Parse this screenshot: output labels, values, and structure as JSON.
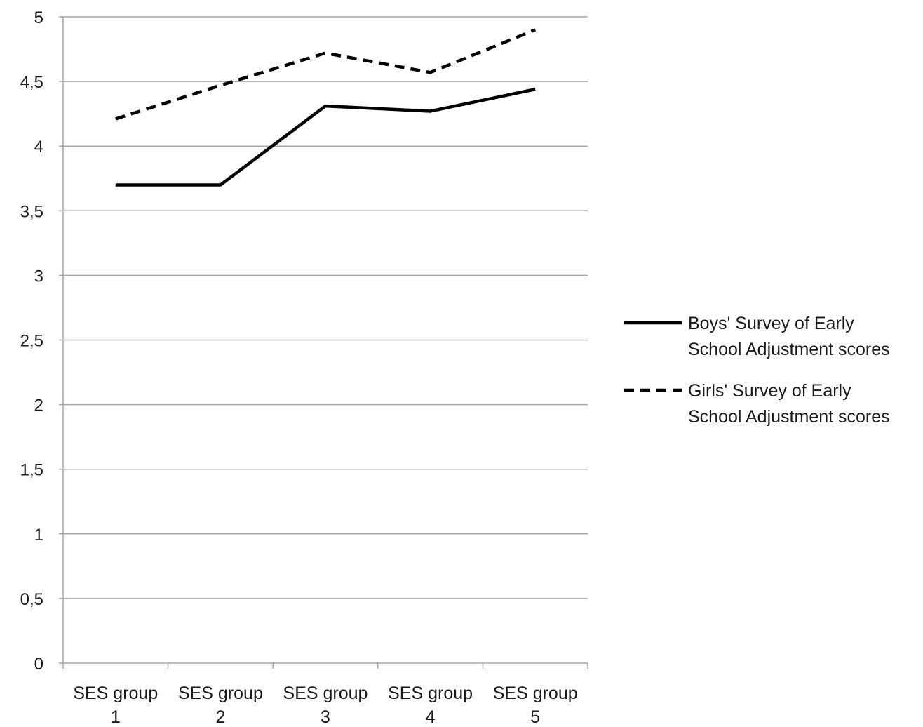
{
  "chart_data": {
    "type": "line",
    "title": "",
    "xlabel": "",
    "ylabel": "",
    "categories": [
      [
        "SES group",
        "1"
      ],
      [
        "SES group",
        "2"
      ],
      [
        "SES group",
        "3"
      ],
      [
        "SES group",
        "4"
      ],
      [
        "SES group",
        "5"
      ]
    ],
    "ylim": [
      0,
      5
    ],
    "yticks": [
      {
        "value": 0,
        "label": "0"
      },
      {
        "value": 0.5,
        "label": "0,5"
      },
      {
        "value": 1,
        "label": "1"
      },
      {
        "value": 1.5,
        "label": "1,5"
      },
      {
        "value": 2,
        "label": "2"
      },
      {
        "value": 2.5,
        "label": "2,5"
      },
      {
        "value": 3,
        "label": "3"
      },
      {
        "value": 3.5,
        "label": "3,5"
      },
      {
        "value": 4,
        "label": "4"
      },
      {
        "value": 4.5,
        "label": "4,5"
      },
      {
        "value": 5,
        "label": "5"
      }
    ],
    "grid": true,
    "legend_position": "right",
    "series": [
      {
        "name": [
          "Boys' Survey of Early",
          "School Adjustment scores"
        ],
        "values": [
          3.7,
          3.7,
          4.31,
          4.27,
          4.44
        ],
        "line_style": "solid",
        "color": "#000000"
      },
      {
        "name": [
          "Girls' Survey of Early",
          "School Adjustment scores"
        ],
        "values": [
          4.21,
          4.47,
          4.72,
          4.57,
          4.9
        ],
        "line_style": "dashed",
        "color": "#000000"
      }
    ]
  }
}
